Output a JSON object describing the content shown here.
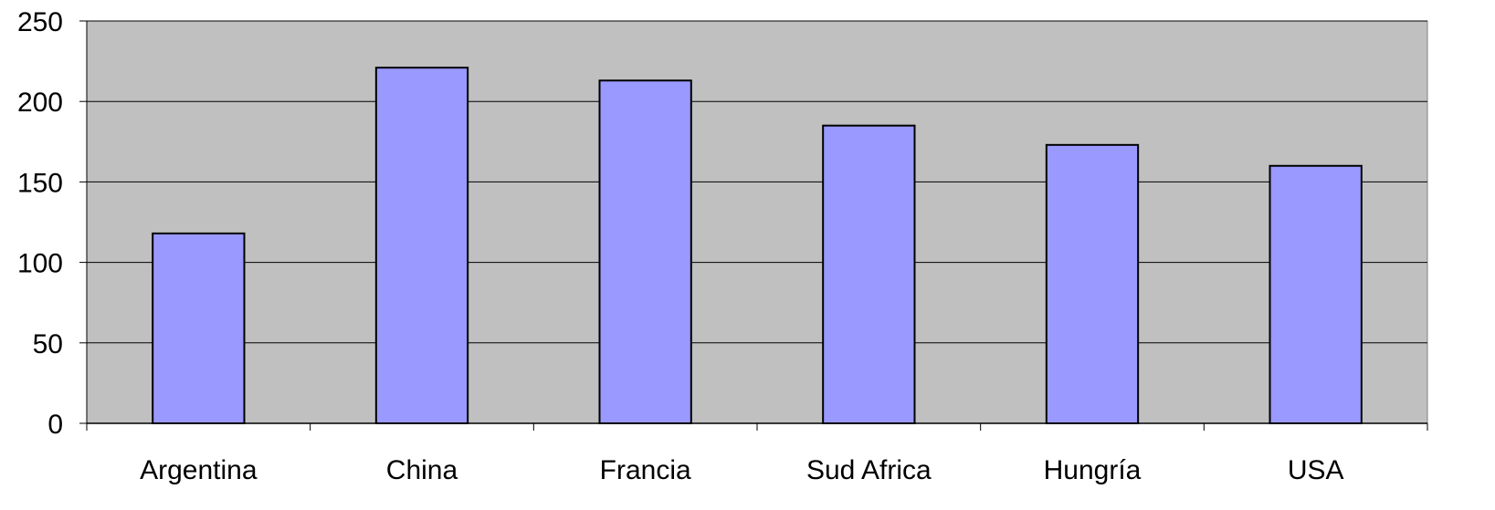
{
  "chart_data": {
    "type": "bar",
    "title": "",
    "xlabel": "",
    "ylabel": "",
    "categories": [
      "Argentina",
      "China",
      "Francia",
      "Sud Africa",
      "Hungría",
      "USA"
    ],
    "values": [
      118,
      221,
      213,
      185,
      173,
      160
    ],
    "ylim": [
      0,
      250
    ],
    "yticks": [
      "0",
      "50",
      "100",
      "150",
      "200",
      "250"
    ],
    "grid": true,
    "legend": "none",
    "colors": {
      "plot_background": "#c0c0c0",
      "bar_fill": "#9999ff",
      "bar_stroke": "#000000",
      "grid": "#000000"
    }
  }
}
